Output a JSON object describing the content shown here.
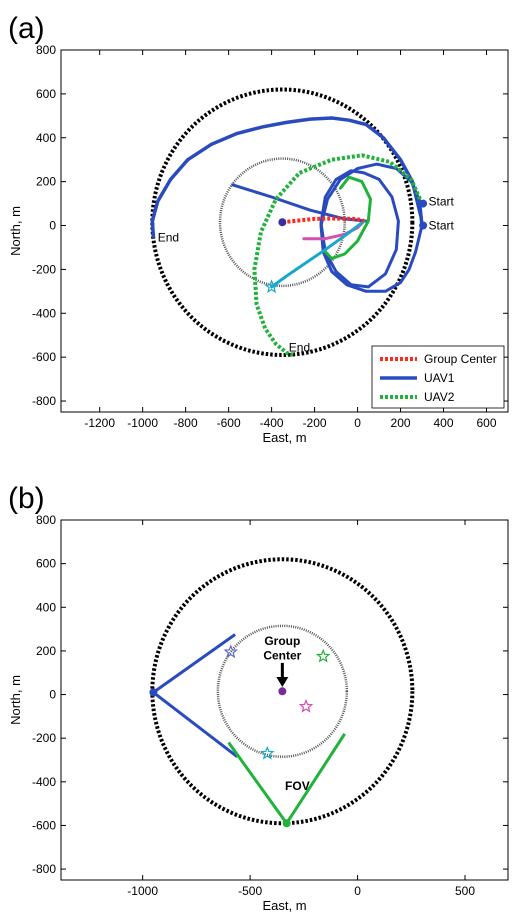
{
  "chart_data": [
    {
      "type": "line",
      "panel_label": "(a)",
      "xlabel": "East, m",
      "ylabel": "North, m",
      "xlim": [
        -1380,
        700
      ],
      "ylim": [
        -850,
        800
      ],
      "xticks": [
        -1200,
        -1000,
        -800,
        -600,
        -400,
        -200,
        0,
        200,
        400,
        600
      ],
      "yticks": [
        -800,
        -600,
        -400,
        -200,
        0,
        200,
        400,
        600,
        800
      ],
      "circles": [
        {
          "name": "outer-circle",
          "cx": -350,
          "cy": 15,
          "r": 605,
          "color": "#000000",
          "style": "dotted-thick"
        },
        {
          "name": "inner-circle",
          "cx": -350,
          "cy": 15,
          "r": 290,
          "color": "#555555",
          "style": "dotted-thin"
        }
      ],
      "series": [
        {
          "name": "Group Center",
          "color": "#ff2a1a",
          "style": "dotted-thick",
          "x": [
            -350,
            -300,
            -200,
            -100,
            -20,
            20,
            30
          ],
          "y": [
            15,
            20,
            30,
            32,
            30,
            25,
            20
          ]
        },
        {
          "name": "UAV1",
          "color": "#2a4bbf",
          "style": "solid-thick",
          "x": [
            300,
            295,
            280,
            255,
            200,
            120,
            40,
            -40,
            -120,
            -220,
            -330,
            -440,
            -560,
            -680,
            -790,
            -870,
            -930,
            -955,
            -950
          ],
          "y": [
            0,
            40,
            100,
            200,
            300,
            400,
            460,
            480,
            490,
            485,
            470,
            450,
            420,
            370,
            300,
            210,
            110,
            20,
            -50
          ]
        },
        {
          "name": "UAV2",
          "color": "#1fb33a",
          "style": "dotted-thick",
          "x": [
            300,
            250,
            150,
            20,
            -120,
            -270,
            -380,
            -450,
            -480,
            -470,
            -430,
            -380,
            -330,
            -300
          ],
          "y": [
            100,
            210,
            290,
            320,
            300,
            240,
            120,
            -30,
            -200,
            -360,
            -470,
            -540,
            -580,
            -590
          ]
        }
      ],
      "extra_lines": [
        {
          "name": "uav1-loop",
          "color": "#2a4bbf",
          "x": [
            30,
            100,
            160,
            190,
            180,
            130,
            50,
            -30,
            -100,
            -150,
            -170,
            -150,
            -100,
            -30,
            30
          ],
          "y": [
            240,
            210,
            130,
            20,
            -110,
            -220,
            -280,
            -270,
            -210,
            -120,
            10,
            130,
            210,
            250,
            240
          ]
        },
        {
          "name": "uav1-path-2",
          "color": "#2a4bbf",
          "x": [
            -580,
            -400,
            -220,
            -60,
            40
          ],
          "y": [
            185,
            130,
            70,
            30,
            20
          ]
        },
        {
          "name": "uav1-outer-loop",
          "color": "#2a4bbf",
          "x": [
            300,
            270,
            240,
            200,
            130,
            40,
            -50,
            -120,
            -160,
            -170,
            -140,
            -80,
            0,
            90,
            180,
            250,
            290,
            300
          ],
          "y": [
            0,
            -120,
            -200,
            -260,
            -300,
            -300,
            -270,
            -210,
            -120,
            0,
            120,
            210,
            260,
            280,
            260,
            200,
            110,
            0
          ]
        },
        {
          "name": "green-solid-loop",
          "color": "#1fb33a",
          "x": [
            -80,
            -40,
            20,
            60,
            50,
            0,
            -60,
            -120,
            -150
          ],
          "y": [
            170,
            220,
            200,
            120,
            20,
            -70,
            -130,
            -150,
            -120
          ]
        },
        {
          "name": "magenta-path",
          "color": "#d34fb0",
          "x": [
            -250,
            -150,
            -60,
            0,
            30
          ],
          "y": [
            -60,
            -60,
            -40,
            -10,
            20
          ]
        },
        {
          "name": "cyan-path",
          "color": "#19a8c8",
          "x": [
            -400,
            -330,
            -240,
            -150,
            -50,
            30
          ],
          "y": [
            -280,
            -230,
            -170,
            -110,
            -40,
            20
          ]
        }
      ],
      "markers": [
        {
          "name": "start-marker-1",
          "x": 305,
          "y": 100,
          "color": "#2a4bbf"
        },
        {
          "name": "start-marker-2",
          "x": 305,
          "y": 0,
          "color": "#2a4bbf"
        },
        {
          "name": "group-center-dot",
          "x": -350,
          "y": 15,
          "color": "#3a2fa0"
        }
      ],
      "star_markers": [
        {
          "name": "cyan-star",
          "x": -400,
          "y": -280,
          "color": "#19a8c8"
        }
      ],
      "annotations": [
        {
          "text": "Start",
          "x": 330,
          "y": 110
        },
        {
          "text": "Start",
          "x": 330,
          "y": 0
        },
        {
          "text": "End",
          "x": -930,
          "y": -55
        },
        {
          "text": "End",
          "x": -320,
          "y": -555
        }
      ],
      "legend": {
        "position": "bottom-right",
        "entries": [
          "Group Center",
          "UAV1",
          "UAV2"
        ]
      }
    },
    {
      "type": "line",
      "panel_label": "(b)",
      "xlabel": "East, m",
      "ylabel": "North, m",
      "xlim": [
        -1380,
        700
      ],
      "ylim": [
        -850,
        800
      ],
      "xticks": [
        -1000,
        -500,
        0,
        500
      ],
      "yticks": [
        -800,
        -600,
        -400,
        -200,
        0,
        200,
        400,
        600,
        800
      ],
      "circles": [
        {
          "name": "outer-circle",
          "cx": -350,
          "cy": 15,
          "r": 605,
          "color": "#000000",
          "style": "dotted-thick"
        },
        {
          "name": "inner-circle",
          "cx": -350,
          "cy": 15,
          "r": 300,
          "color": "#555555",
          "style": "dotted-thin"
        }
      ],
      "fov_lines": [
        {
          "name": "uav1-fov-upper",
          "color": "#2a4bbf",
          "x": [
            -950,
            -570
          ],
          "y": [
            10,
            275
          ]
        },
        {
          "name": "uav1-fov-lower",
          "color": "#2a4bbf",
          "x": [
            -950,
            -560
          ],
          "y": [
            10,
            -285
          ]
        },
        {
          "name": "uav2-fov-left",
          "color": "#1fb33a",
          "x": [
            -330,
            -600
          ],
          "y": [
            -590,
            -220
          ]
        },
        {
          "name": "uav2-fov-right",
          "color": "#1fb33a",
          "x": [
            -330,
            -60
          ],
          "y": [
            -590,
            -180
          ]
        }
      ],
      "markers": [
        {
          "name": "group-center-dot",
          "x": -350,
          "y": 15,
          "color": "#7a2a9a"
        },
        {
          "name": "uav1-position",
          "x": -950,
          "y": 10,
          "color": "#2a4bbf"
        },
        {
          "name": "uav2-position",
          "x": -330,
          "y": -590,
          "color": "#1fb33a"
        }
      ],
      "star_markers": [
        {
          "name": "blue-star",
          "x": -590,
          "y": 195,
          "color": "#5a6cc8"
        },
        {
          "name": "green-star",
          "x": -160,
          "y": 175,
          "color": "#1fb33a"
        },
        {
          "name": "pink-star",
          "x": -240,
          "y": -55,
          "color": "#d34fb0"
        },
        {
          "name": "cyan-star",
          "x": -420,
          "y": -270,
          "color": "#19a8c8"
        }
      ],
      "annotations": [
        {
          "text": "Group",
          "x": -350,
          "y": 245,
          "bold": true
        },
        {
          "text": "Center",
          "x": -350,
          "y": 180,
          "bold": true
        },
        {
          "text": "FOV",
          "x": -280,
          "y": -420,
          "bold": true
        }
      ],
      "arrow": {
        "from_x": -350,
        "from_y": 145,
        "to_x": -350,
        "to_y": 30
      }
    }
  ]
}
